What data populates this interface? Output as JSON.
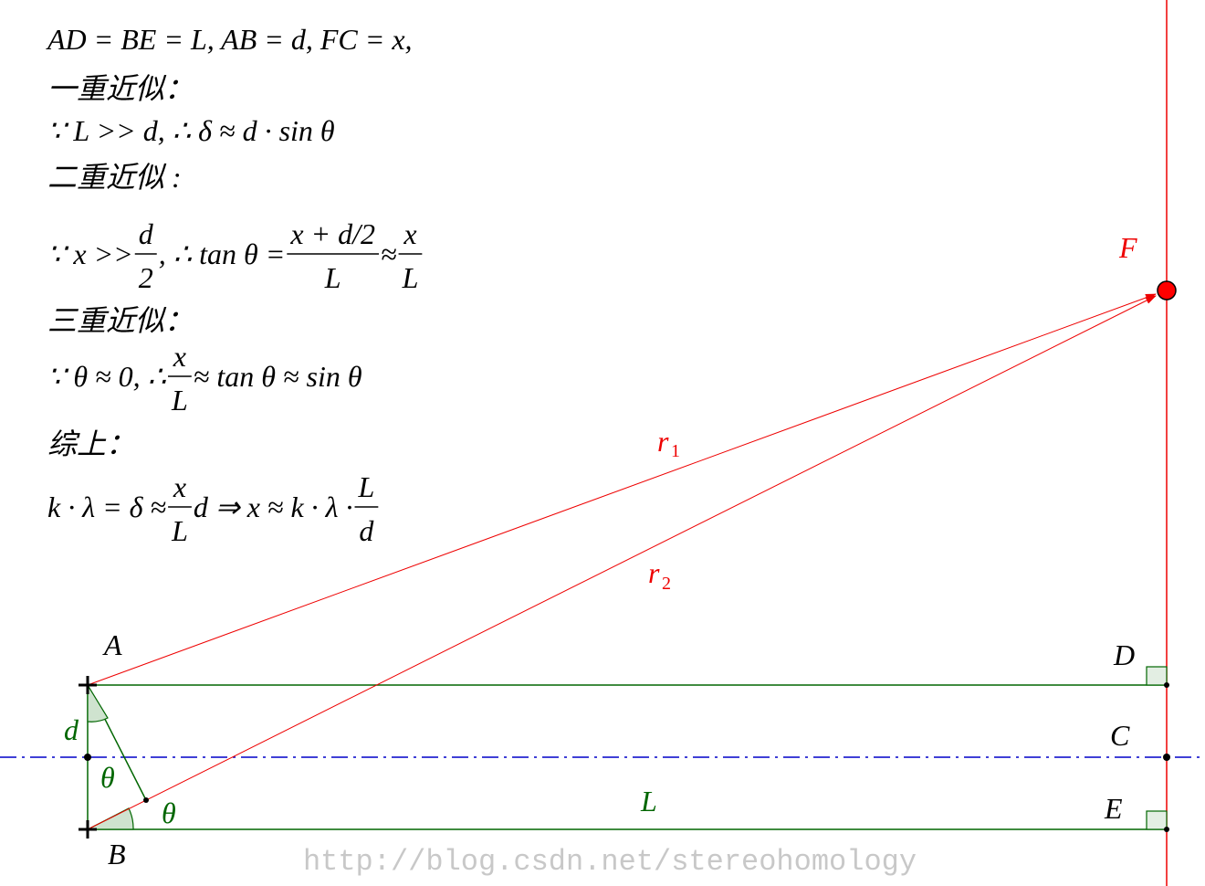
{
  "formulas": [
    [
      "AD = BE = L,    AB = d,    FC = x,"
    ],
    [
      "一重近似："
    ],
    [
      "∵ L >> d,    ∴ δ    ≈    d · sin θ"
    ],
    [
      "二重近似 :"
    ],
    [
      "∵ x >> ",
      {
        "num": "d",
        "den": "2"
      },
      ",    ∴ tan θ = ",
      {
        "num": "x + d/2",
        "den": "L"
      },
      " ≈ ",
      {
        "num": "x",
        "den": "L"
      }
    ],
    [
      "三重近似："
    ],
    [
      "∵ θ ≈ 0,    ∴ ",
      {
        "num": "x",
        "den": "L"
      },
      " ≈ tan θ ≈ sin θ"
    ],
    [
      "综上："
    ],
    [
      "k · λ = δ ≈ ",
      {
        "num": "x",
        "den": "L"
      },
      "d ⇒ x ≈ k · λ · ",
      {
        "num": "L",
        "den": "d"
      }
    ]
  ],
  "labels": {
    "A": "A",
    "B": "B",
    "C": "C",
    "D": "D",
    "E": "E",
    "F": "F",
    "r1": "r",
    "r1_sub": "1",
    "r2": "r",
    "r2_sub": "2",
    "d": "d",
    "theta1": "θ",
    "theta2": "θ",
    "L": "L"
  },
  "watermark": "http://blog.csdn.net/stereohomology"
}
